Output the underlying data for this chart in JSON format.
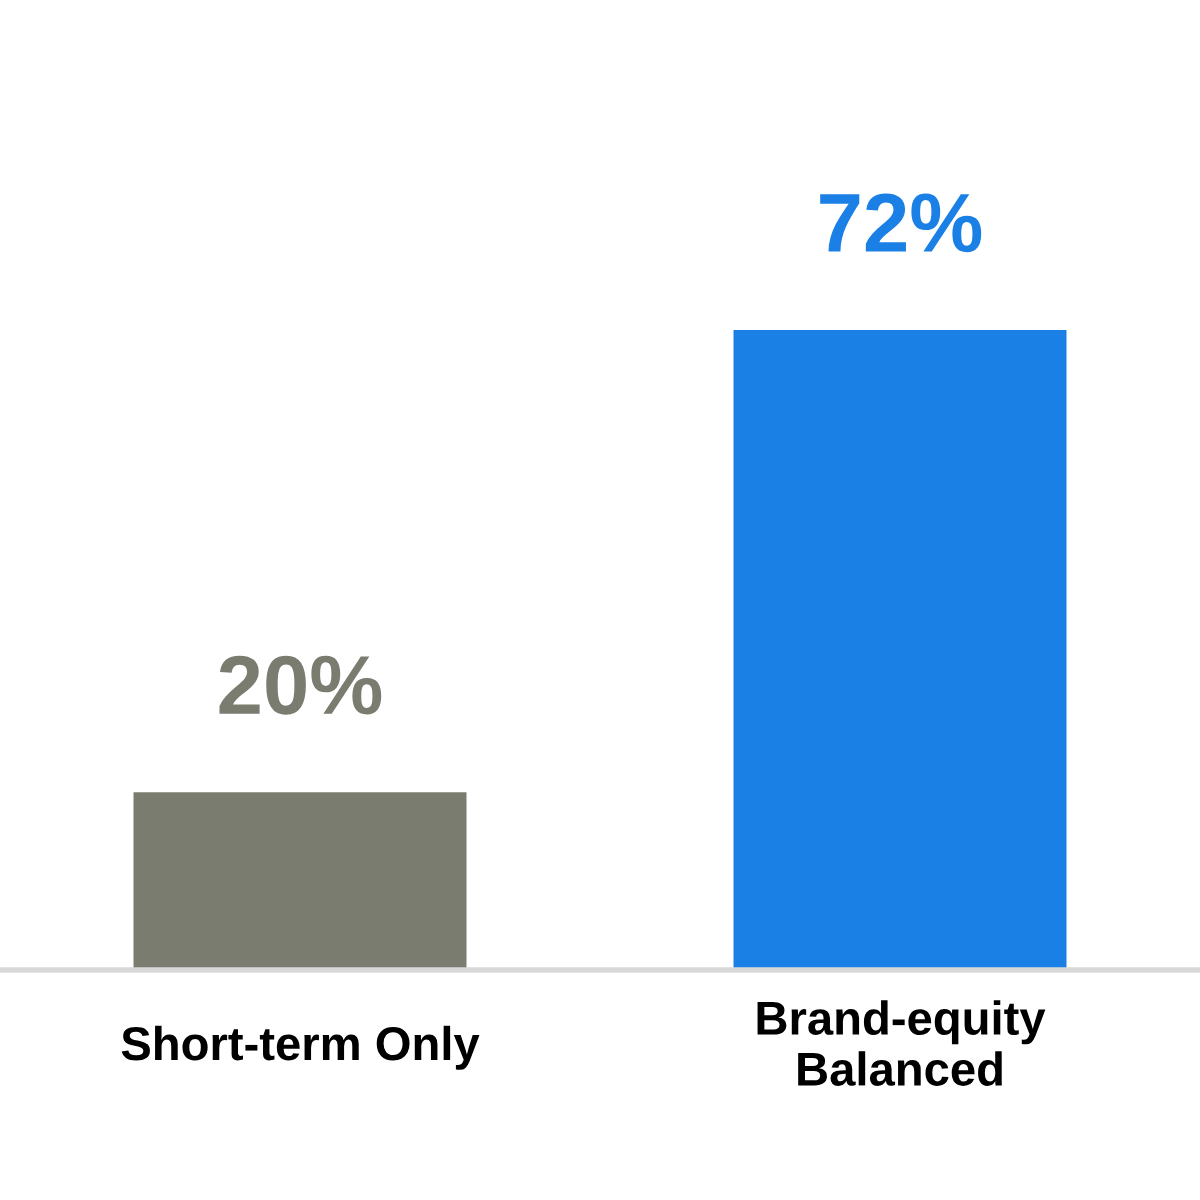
{
  "chart_data": {
    "type": "bar",
    "categories": [
      "Short-term Only",
      "Brand-equity\nBalanced"
    ],
    "values": [
      20,
      72
    ],
    "colors": [
      "#7a7c70",
      "#1a80e5"
    ],
    "value_labels": [
      "20%",
      "72%"
    ],
    "grid": false,
    "legend": false
  }
}
